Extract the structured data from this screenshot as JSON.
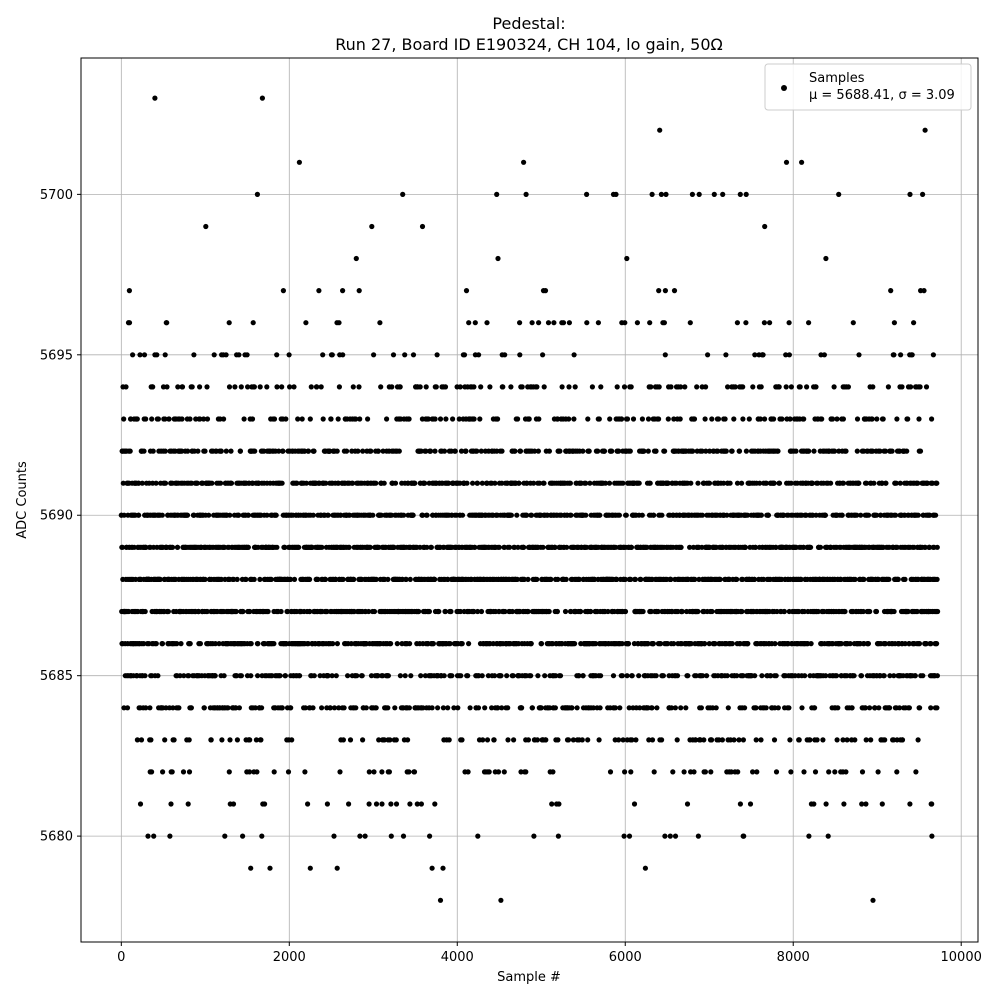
{
  "chart_data": {
    "type": "scatter",
    "title": "Pedestal:",
    "subtitle": "Run 27, Board ID E190324, CH 104, lo gain, 50Ω",
    "xlabel": "Sample #",
    "ylabel": "ADC Counts",
    "xlim": [
      -480,
      10200
    ],
    "ylim": [
      5676.7,
      5704.25
    ],
    "x_ticks": [
      0,
      2000,
      4000,
      6000,
      8000,
      10000
    ],
    "y_ticks": [
      5680,
      5685,
      5690,
      5695,
      5700
    ],
    "grid": true,
    "legend": {
      "placement": "top-right",
      "entries": [
        "Samples",
        "μ = 5688.41, σ = 3.09"
      ]
    },
    "series": [
      {
        "name": "Samples",
        "color": "#000000",
        "marker": "circle",
        "n_samples": 9720,
        "mean": 5688.41,
        "std": 3.09,
        "x_range": [
          0,
          9720
        ],
        "y_integer_range": [
          5678,
          5703
        ]
      }
    ],
    "notable_points": [
      {
        "x": 400,
        "y": 5703
      },
      {
        "x": 1680,
        "y": 5703
      },
      {
        "x": 6410,
        "y": 5702
      },
      {
        "x": 9570,
        "y": 5702
      },
      {
        "x": 2120,
        "y": 5701
      },
      {
        "x": 4790,
        "y": 5701
      },
      {
        "x": 7920,
        "y": 5701
      },
      {
        "x": 8100,
        "y": 5701
      },
      {
        "x": 1620,
        "y": 5700
      },
      {
        "x": 3350,
        "y": 5700
      },
      {
        "x": 4470,
        "y": 5700
      },
      {
        "x": 4820,
        "y": 5700
      },
      {
        "x": 5540,
        "y": 5700
      },
      {
        "x": 5860,
        "y": 5700
      },
      {
        "x": 5890,
        "y": 5700
      },
      {
        "x": 6320,
        "y": 5700
      },
      {
        "x": 6430,
        "y": 5700
      },
      {
        "x": 6800,
        "y": 5700
      },
      {
        "x": 6880,
        "y": 5700
      },
      {
        "x": 7060,
        "y": 5700
      },
      {
        "x": 7160,
        "y": 5700
      },
      {
        "x": 7370,
        "y": 5700
      },
      {
        "x": 7440,
        "y": 5700
      },
      {
        "x": 9390,
        "y": 5700
      },
      {
        "x": 9540,
        "y": 5700
      },
      {
        "x": 1540,
        "y": 5679
      },
      {
        "x": 1770,
        "y": 5679
      },
      {
        "x": 2250,
        "y": 5679
      },
      {
        "x": 2570,
        "y": 5679
      },
      {
        "x": 3700,
        "y": 5679
      },
      {
        "x": 3830,
        "y": 5679
      },
      {
        "x": 6240,
        "y": 5679
      },
      {
        "x": 3800,
        "y": 5678
      },
      {
        "x": 4520,
        "y": 5678
      },
      {
        "x": 8950,
        "y": 5678
      }
    ]
  }
}
